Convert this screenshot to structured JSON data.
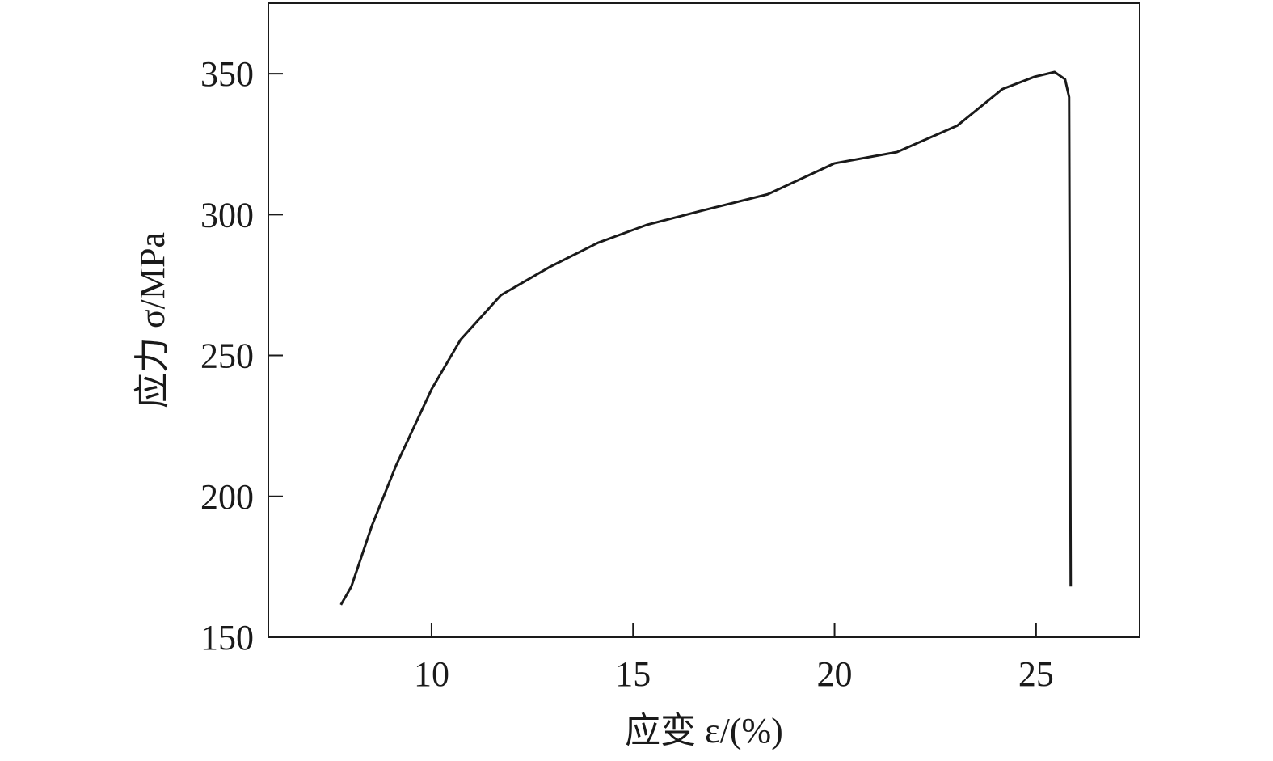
{
  "chart_data": {
    "type": "line",
    "xlabel": "应变 ε/(%)",
    "ylabel": "应力 σ/MPa",
    "xlim": [
      5.95,
      27.57
    ],
    "ylim": [
      150,
      375
    ],
    "xticks": [
      10,
      15,
      20,
      25
    ],
    "yticks": [
      150,
      200,
      250,
      300,
      350
    ],
    "series": [
      {
        "color": "#1a1a1a",
        "x": [
          7.75,
          8.01,
          8.52,
          9.12,
          10,
          10.72,
          11.72,
          12.93,
          14.13,
          15.33,
          16.74,
          18.34,
          20,
          21.55,
          23.05,
          24.16,
          24.96,
          25.46,
          25.72,
          25.82,
          25.86
        ],
        "values": [
          161.5,
          168,
          189.6,
          211,
          238,
          255.6,
          271.4,
          281.4,
          290,
          296.3,
          301.5,
          307.2,
          318.2,
          322.2,
          331.6,
          344.5,
          348.9,
          350.6,
          348,
          341.7,
          168
        ]
      }
    ]
  }
}
